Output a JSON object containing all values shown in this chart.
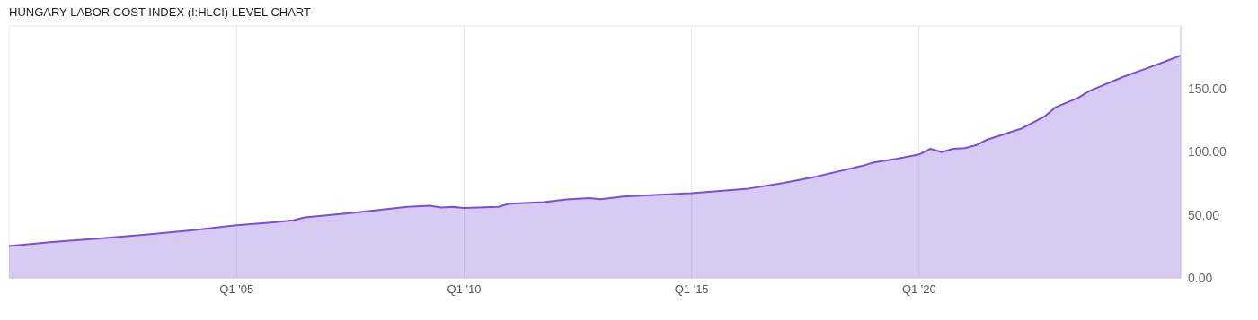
{
  "chart_data": {
    "type": "area",
    "title": "HUNGARY LABOR COST INDEX (I:HLCI) LEVEL CHART",
    "x": [
      "2000-01",
      "2001-01",
      "2002-01",
      "2003-01",
      "2004-01",
      "2005-01",
      "2005-10",
      "2006-04",
      "2006-07",
      "2007-07",
      "2008-10",
      "2009-04",
      "2009-07",
      "2009-10",
      "2010-01",
      "2010-10",
      "2011-01",
      "2011-10",
      "2012-04",
      "2012-10",
      "2013-01",
      "2013-07",
      "2014-01",
      "2015-01",
      "2016-04",
      "2017-01",
      "2017-10",
      "2018-10",
      "2019-01",
      "2019-07",
      "2020-01",
      "2020-04",
      "2020-07",
      "2020-10",
      "2021-01",
      "2021-04",
      "2021-07",
      "2022-04",
      "2022-10",
      "2023-01",
      "2023-07",
      "2023-10",
      "2024-07",
      "2025-04",
      "2025-10"
    ],
    "series": [
      {
        "color": "#7b4fd6",
        "values": [
          25.2,
          28.6,
          31.4,
          34.3,
          37.7,
          41.8,
          43.9,
          45.7,
          48.0,
          51.4,
          56.4,
          57.3,
          55.9,
          56.4,
          55.5,
          56.4,
          58.9,
          60.2,
          62.3,
          63.4,
          62.5,
          64.6,
          65.5,
          67.3,
          70.9,
          75.2,
          80.5,
          88.9,
          91.6,
          94.5,
          98.0,
          102.5,
          99.8,
          102.5,
          103.0,
          105.3,
          109.8,
          118.5,
          128.0,
          135.5,
          143.0,
          148.5,
          159.8,
          169.6,
          176.5
        ]
      }
    ],
    "xlim": [
      "2000-01",
      "2025-10"
    ],
    "xticks": [
      {
        "value": "2005-01",
        "label": "Q1 '05"
      },
      {
        "value": "2010-01",
        "label": "Q1 '10"
      },
      {
        "value": "2015-01",
        "label": "Q1 '15"
      },
      {
        "value": "2020-01",
        "label": "Q1 '20"
      }
    ],
    "ylim": [
      0,
      200
    ],
    "yticks": [
      {
        "value": 0,
        "label": "0.00"
      },
      {
        "value": 50,
        "label": "50.00"
      },
      {
        "value": 100,
        "label": "100.00"
      },
      {
        "value": 150,
        "label": "150.00"
      }
    ],
    "grid": true
  }
}
